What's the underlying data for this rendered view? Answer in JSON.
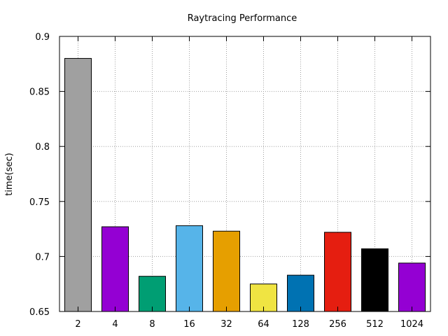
{
  "chart_data": {
    "type": "bar",
    "title": "Raytracing Performance",
    "xlabel": "",
    "ylabel": "time(sec)",
    "ylim": [
      0.65,
      0.9
    ],
    "yticks": [
      "0.65",
      "0.7",
      "0.75",
      "0.8",
      "0.85",
      "0.9"
    ],
    "grid": true,
    "categories": [
      "2",
      "4",
      "8",
      "16",
      "32",
      "64",
      "128",
      "256",
      "512",
      "1024"
    ],
    "values": [
      0.88,
      0.727,
      0.682,
      0.728,
      0.723,
      0.675,
      0.683,
      0.722,
      0.707,
      0.694
    ],
    "colors": [
      "#a0a0a0",
      "#9400d3",
      "#009e73",
      "#56b4e9",
      "#e69f00",
      "#f0e442",
      "#0072b2",
      "#e51e10",
      "#000000",
      "#9400d3"
    ]
  }
}
